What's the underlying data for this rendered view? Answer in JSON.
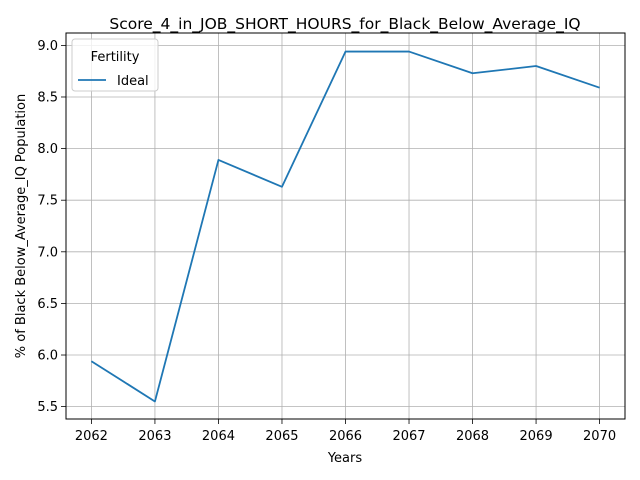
{
  "chart_data": {
    "type": "line",
    "title": "Score_4_in_JOB_SHORT_HOURS_for_Black_Below_Average_IQ",
    "xlabel": "Years",
    "ylabel": "% of Black Below_Average_IQ Population",
    "x": [
      2062,
      2063,
      2064,
      2065,
      2066,
      2067,
      2068,
      2069,
      2070
    ],
    "x_tick_labels": [
      "2062",
      "2063",
      "2064",
      "2065",
      "2066",
      "2067",
      "2068",
      "2069",
      "2070"
    ],
    "y_ticks": [
      5.5,
      6.0,
      6.5,
      7.0,
      7.5,
      8.0,
      8.5,
      9.0
    ],
    "y_tick_labels": [
      "5.5",
      "6.0",
      "6.5",
      "7.0",
      "7.5",
      "8.0",
      "8.5",
      "9.0"
    ],
    "xlim": [
      2061.6,
      2070.4
    ],
    "ylim": [
      5.38,
      9.12
    ],
    "grid": true,
    "legend": {
      "title": "Fertility",
      "placement": "top-left"
    },
    "series": [
      {
        "name": "Ideal",
        "color": "#1f77b4",
        "values": [
          5.94,
          5.55,
          7.89,
          7.63,
          8.94,
          8.94,
          8.73,
          8.8,
          8.59
        ]
      }
    ]
  }
}
